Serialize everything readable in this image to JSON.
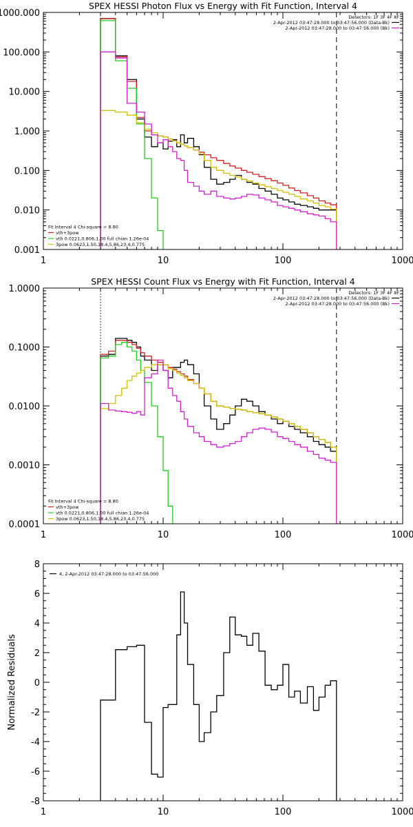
{
  "chart_data": [
    {
      "type": "line",
      "title": "SPEX HESSI Photon Flux vs Energy with Fit Function, Interval 4",
      "xscale": "log",
      "yscale": "log",
      "xlim": [
        1,
        1000
      ],
      "ylim": [
        0.001,
        1000
      ],
      "xticks": [
        1,
        10,
        100,
        1000
      ],
      "xtick_labels": [
        "1",
        "10",
        "100",
        "1000"
      ],
      "yticks": [
        0.001,
        0.01,
        0.1,
        1,
        10,
        100,
        1000
      ],
      "ytick_labels": [
        "0.001",
        "0.010",
        "0.100",
        "1.000",
        "10.000",
        "100.000",
        "1000.000"
      ],
      "vlines": [
        {
          "x": 3.0,
          "style": "dotted",
          "color": "#000000"
        },
        {
          "x": 280,
          "style": "dashed",
          "color": "#000000"
        }
      ],
      "info_lines": [
        "Detectors: 1F 3F 4F 8F",
        "2-Apr-2012 03:47:28.000 to 03:47:56.000 (Data-Bk)",
        "2-Apr-2012 03:47:28.000 to 03:47:56.000 (Bk)"
      ],
      "info_colors": [
        "",
        "#000000",
        "#d020d0"
      ],
      "fit_lines": [
        "Fit Interval  4   Chi-square = 8.80",
        "vth+3pow",
        "vth 0.0221,0.806,1.00  full chian 1.26e-04",
        "3pow 0.0623,1.50,18.4,5.86,23.4,0.775"
      ],
      "fit_colors": [
        "",
        "#d02020",
        "#20cc20",
        "#d0c000"
      ],
      "series": [
        {
          "color": "#000000",
          "edges": [
            3,
            4,
            5,
            6,
            7,
            8,
            9,
            10,
            11,
            12,
            13,
            14,
            15,
            16,
            18,
            20,
            22,
            25,
            28,
            32,
            36,
            40,
            45,
            50,
            56,
            63,
            71,
            80,
            90,
            100,
            112,
            125,
            140,
            160,
            180,
            200,
            225,
            250,
            280
          ],
          "values": [
            700,
            80,
            20,
            2.0,
            0.7,
            0.4,
            0.5,
            0.35,
            0.55,
            0.6,
            0.4,
            0.8,
            0.5,
            0.65,
            0.4,
            0.25,
            0.12,
            0.06,
            0.045,
            0.05,
            0.06,
            0.075,
            0.06,
            0.05,
            0.045,
            0.035,
            0.03,
            0.025,
            0.02,
            0.018,
            0.016,
            0.014,
            0.013,
            0.012,
            0.011,
            0.01,
            0.01,
            0.01
          ]
        },
        {
          "color": "#d02020",
          "edges": [
            3,
            4,
            5,
            6,
            7,
            8,
            9,
            10,
            11,
            12,
            13,
            14,
            15,
            16,
            18,
            20,
            22,
            25,
            28,
            32,
            36,
            40,
            45,
            50,
            56,
            63,
            71,
            80,
            90,
            100,
            112,
            125,
            140,
            160,
            180,
            200,
            225,
            250,
            280
          ],
          "values": [
            690,
            75,
            18,
            2.2,
            1.0,
            0.8,
            0.75,
            0.7,
            0.62,
            0.56,
            0.5,
            0.46,
            0.42,
            0.38,
            0.33,
            0.29,
            0.25,
            0.21,
            0.18,
            0.15,
            0.13,
            0.115,
            0.1,
            0.09,
            0.08,
            0.07,
            0.062,
            0.055,
            0.048,
            0.042,
            0.036,
            0.031,
            0.027,
            0.023,
            0.02,
            0.017,
            0.015,
            0.0135
          ]
        },
        {
          "color": "#20cc20",
          "edges": [
            3,
            4,
            5,
            6,
            7,
            8,
            9,
            10
          ],
          "values": [
            620,
            60,
            12,
            1.5,
            0.2,
            0.02,
            0.003
          ]
        },
        {
          "color": "#d0c000",
          "edges": [
            3,
            4,
            5,
            6,
            7,
            8,
            9,
            10,
            11,
            12,
            13,
            14,
            15,
            16,
            18,
            20,
            22,
            25,
            28,
            32,
            36,
            40,
            45,
            50,
            56,
            63,
            71,
            80,
            90,
            100,
            112,
            125,
            140,
            160,
            180,
            200,
            225,
            250,
            280
          ],
          "values": [
            3.3,
            3.0,
            2.5,
            1.6,
            1.1,
            0.9,
            0.75,
            0.7,
            0.62,
            0.56,
            0.5,
            0.46,
            0.42,
            0.38,
            0.33,
            0.26,
            0.18,
            0.12,
            0.1,
            0.085,
            0.075,
            0.068,
            0.06,
            0.054,
            0.048,
            0.043,
            0.039,
            0.035,
            0.031,
            0.028,
            0.025,
            0.022,
            0.019,
            0.017,
            0.015,
            0.013,
            0.012,
            0.0105
          ]
        },
        {
          "color": "#d020d0",
          "edges": [
            3,
            4,
            5,
            6,
            7,
            8,
            9,
            10,
            11,
            12,
            13,
            14,
            15,
            16,
            18,
            20,
            22,
            25,
            28,
            32,
            36,
            40,
            45,
            50,
            56,
            63,
            71,
            80,
            90,
            100,
            112,
            125,
            140,
            160,
            180,
            200,
            225,
            250,
            280
          ],
          "values": [
            100,
            70,
            5.0,
            3.0,
            1.5,
            0.8,
            0.5,
            0.6,
            0.4,
            0.3,
            0.2,
            0.18,
            0.1,
            0.05,
            0.04,
            0.03,
            0.025,
            0.03,
            0.022,
            0.02,
            0.019,
            0.02,
            0.022,
            0.025,
            0.024,
            0.02,
            0.018,
            0.016,
            0.013,
            0.012,
            0.011,
            0.01,
            0.009,
            0.008,
            0.0075,
            0.007,
            0.006,
            0.005
          ]
        }
      ]
    },
    {
      "type": "line",
      "title": "SPEX HESSI Count Flux vs Energy with Fit Function, Interval 4",
      "xscale": "log",
      "yscale": "log",
      "xlim": [
        1,
        1000
      ],
      "ylim": [
        0.0001,
        1
      ],
      "xticks": [
        1,
        10,
        100,
        1000
      ],
      "xtick_labels": [
        "1",
        "10",
        "100",
        "1000"
      ],
      "yticks": [
        0.0001,
        0.001,
        0.01,
        0.1,
        1
      ],
      "ytick_labels": [
        "0.0001",
        "0.0010",
        "0.0100",
        "0.1000",
        "1.0000"
      ],
      "vlines": [
        {
          "x": 3.0,
          "style": "dotted",
          "color": "#000000"
        },
        {
          "x": 280,
          "style": "dashed",
          "color": "#000000"
        }
      ],
      "info_lines": [
        "Detectors: 1F 3F 4F 8F",
        "2-Apr-2012 03:47:28.000 to 03:47:56.000 (Data-Bk)",
        "2-Apr-2012 03:47:28.000 to 03:47:56.000 (Bk)"
      ],
      "info_colors": [
        "",
        "#000000",
        "#d020d0"
      ],
      "fit_lines": [
        "Fit Interval  4   Chi-square = 8.80",
        "vth+3pow",
        "vth 0.0221,0.806,1.00  full chian 1.26e-04",
        "3pow 0.0623,1.50,18.4,5.86,23.4,0.775"
      ],
      "fit_colors": [
        "",
        "#d02020",
        "#20cc20",
        "#d0c000"
      ],
      "series": [
        {
          "color": "#000000",
          "edges": [
            3,
            3.5,
            4,
            4.5,
            5,
            5.5,
            6,
            6.5,
            7,
            8,
            9,
            10,
            11,
            12,
            13,
            14,
            15,
            16,
            18,
            20,
            22,
            25,
            28,
            32,
            36,
            40,
            45,
            50,
            56,
            63,
            71,
            80,
            90,
            100,
            112,
            125,
            140,
            160,
            180,
            200,
            225,
            250,
            280
          ],
          "values": [
            0.07,
            0.075,
            0.14,
            0.14,
            0.13,
            0.12,
            0.1,
            0.07,
            0.06,
            0.04,
            0.05,
            0.04,
            0.03,
            0.045,
            0.045,
            0.055,
            0.06,
            0.05,
            0.035,
            0.02,
            0.01,
            0.006,
            0.004,
            0.005,
            0.007,
            0.01,
            0.013,
            0.012,
            0.01,
            0.008,
            0.007,
            0.006,
            0.005,
            0.0055,
            0.0045,
            0.004,
            0.0035,
            0.003,
            0.0025,
            0.0022,
            0.002,
            0.0017
          ]
        },
        {
          "color": "#d02020",
          "edges": [
            3,
            3.5,
            4,
            4.5,
            5,
            5.5,
            6,
            6.5,
            7,
            8,
            9,
            10,
            11,
            12,
            13,
            14,
            15,
            16,
            18,
            20,
            22,
            25,
            28,
            32,
            36,
            40,
            45,
            50,
            56,
            63,
            71,
            80,
            90,
            100,
            112,
            125,
            140,
            160,
            180,
            200,
            225,
            250,
            280
          ],
          "values": [
            0.075,
            0.085,
            0.13,
            0.13,
            0.12,
            0.11,
            0.095,
            0.08,
            0.07,
            0.06,
            0.055,
            0.05,
            0.045,
            0.042,
            0.038,
            0.035,
            0.032,
            0.028,
            0.024,
            0.02,
            0.016,
            0.012,
            0.01,
            0.0095,
            0.009,
            0.0088,
            0.0085,
            0.008,
            0.0077,
            0.0074,
            0.007,
            0.0065,
            0.006,
            0.0055,
            0.005,
            0.0045,
            0.004,
            0.0035,
            0.003,
            0.0027,
            0.0024,
            0.002
          ]
        },
        {
          "color": "#20cc20",
          "edges": [
            3,
            3.5,
            4,
            4.5,
            5,
            5.5,
            6,
            6.5,
            7,
            8,
            9,
            10,
            11,
            12
          ],
          "values": [
            0.065,
            0.07,
            0.11,
            0.12,
            0.1,
            0.085,
            0.06,
            0.04,
            0.025,
            0.01,
            0.003,
            0.0008,
            0.0002
          ]
        },
        {
          "color": "#d0c000",
          "edges": [
            3,
            3.5,
            4,
            4.5,
            5,
            5.5,
            6,
            6.5,
            7,
            8,
            9,
            10,
            11,
            12,
            13,
            14,
            15,
            16,
            18,
            20,
            22,
            25,
            28,
            32,
            36,
            40,
            45,
            50,
            56,
            63,
            71,
            80,
            90,
            100,
            112,
            125,
            140,
            160,
            180,
            200,
            225,
            250,
            280
          ],
          "values": [
            0.009,
            0.011,
            0.015,
            0.02,
            0.027,
            0.032,
            0.036,
            0.04,
            0.045,
            0.05,
            0.05,
            0.05,
            0.043,
            0.04,
            0.036,
            0.033,
            0.03,
            0.027,
            0.024,
            0.02,
            0.016,
            0.012,
            0.01,
            0.0095,
            0.009,
            0.0088,
            0.0085,
            0.008,
            0.0077,
            0.0074,
            0.007,
            0.0065,
            0.006,
            0.0055,
            0.005,
            0.0045,
            0.004,
            0.0035,
            0.003,
            0.0027,
            0.0024,
            0.002
          ]
        },
        {
          "color": "#d020d0",
          "edges": [
            3,
            3.5,
            4,
            4.5,
            5,
            5.5,
            6,
            6.5,
            7,
            8,
            9,
            10,
            11,
            12,
            13,
            14,
            15,
            16,
            18,
            20,
            22,
            25,
            28,
            32,
            36,
            40,
            45,
            50,
            56,
            63,
            71,
            80,
            90,
            100,
            112,
            125,
            140,
            160,
            180,
            200,
            225,
            250,
            280
          ],
          "values": [
            0.011,
            0.0085,
            0.0082,
            0.008,
            0.0078,
            0.0075,
            0.008,
            0.007,
            0.03,
            0.035,
            0.06,
            0.04,
            0.02,
            0.015,
            0.012,
            0.008,
            0.006,
            0.0045,
            0.0035,
            0.003,
            0.0025,
            0.0022,
            0.002,
            0.0021,
            0.0023,
            0.0025,
            0.003,
            0.0035,
            0.004,
            0.0042,
            0.004,
            0.0036,
            0.003,
            0.0028,
            0.0025,
            0.0022,
            0.002,
            0.0017,
            0.0015,
            0.0013,
            0.0012,
            0.0011
          ]
        }
      ]
    },
    {
      "type": "line",
      "title": "",
      "xscale": "log",
      "yscale": "linear",
      "xlim": [
        1,
        1000
      ],
      "ylim": [
        -8,
        8
      ],
      "xticks": [
        1,
        10,
        100,
        1000
      ],
      "xtick_labels": [
        "1",
        "10",
        "100",
        "1000"
      ],
      "yticks": [
        -8,
        -6,
        -4,
        -2,
        0,
        2,
        4,
        6,
        8
      ],
      "ytick_labels": [
        "-8",
        "-6",
        "-4",
        "-2",
        "0",
        "2",
        "4",
        "6",
        "8"
      ],
      "ylabel": "Normalized Residuals",
      "legend": "4,  2-Apr-2012 03:47:28.000 to 03:47:56.000",
      "series": [
        {
          "color": "#000000",
          "edges": [
            3,
            4,
            5,
            6,
            7,
            8,
            9,
            10,
            11,
            12,
            13,
            14,
            15,
            16,
            18,
            20,
            22,
            25,
            28,
            32,
            36,
            40,
            45,
            50,
            56,
            63,
            71,
            80,
            90,
            100,
            112,
            125,
            140,
            160,
            180,
            200,
            225,
            250,
            280
          ],
          "values": [
            -1.2,
            2.2,
            2.4,
            2.5,
            -2.7,
            -6.2,
            -6.4,
            -1.7,
            -1.5,
            -1.5,
            3.2,
            6.1,
            4.0,
            1.2,
            -1.5,
            -4.0,
            -3.4,
            -2.0,
            -0.9,
            2.0,
            4.4,
            3.2,
            3.1,
            2.5,
            3.3,
            2.1,
            -0.2,
            -0.5,
            -0.2,
            1.2,
            -1.0,
            -0.6,
            -1.4,
            -0.3,
            -1.9,
            -1.0,
            -0.2,
            0.1
          ]
        }
      ]
    }
  ]
}
